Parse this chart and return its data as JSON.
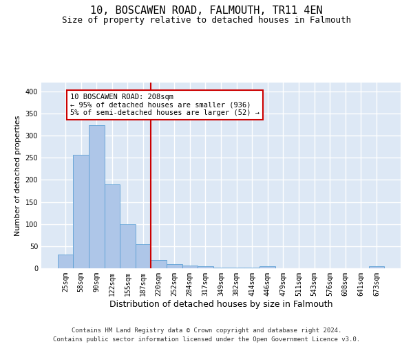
{
  "title": "10, BOSCAWEN ROAD, FALMOUTH, TR11 4EN",
  "subtitle": "Size of property relative to detached houses in Falmouth",
  "xlabel": "Distribution of detached houses by size in Falmouth",
  "ylabel": "Number of detached properties",
  "bar_color": "#aec6e8",
  "bar_edge_color": "#5a9fd4",
  "background_color": "#dde8f5",
  "grid_color": "#ffffff",
  "categories": [
    "25sqm",
    "58sqm",
    "90sqm",
    "122sqm",
    "155sqm",
    "187sqm",
    "220sqm",
    "252sqm",
    "284sqm",
    "317sqm",
    "349sqm",
    "382sqm",
    "414sqm",
    "446sqm",
    "479sqm",
    "511sqm",
    "543sqm",
    "576sqm",
    "608sqm",
    "641sqm",
    "673sqm"
  ],
  "values": [
    31,
    256,
    323,
    190,
    100,
    55,
    18,
    10,
    7,
    4,
    2,
    2,
    2,
    5,
    0,
    0,
    0,
    0,
    0,
    0,
    4
  ],
  "ylim": [
    0,
    420
  ],
  "yticks": [
    0,
    50,
    100,
    150,
    200,
    250,
    300,
    350,
    400
  ],
  "property_line_x": 5.5,
  "annotation_text": "10 BOSCAWEN ROAD: 208sqm\n← 95% of detached houses are smaller (936)\n5% of semi-detached houses are larger (52) →",
  "annotation_box_color": "#ffffff",
  "annotation_box_edge": "#cc0000",
  "line_color": "#cc0000",
  "footer_line1": "Contains HM Land Registry data © Crown copyright and database right 2024.",
  "footer_line2": "Contains public sector information licensed under the Open Government Licence v3.0.",
  "title_fontsize": 11,
  "subtitle_fontsize": 9,
  "xlabel_fontsize": 9,
  "ylabel_fontsize": 8,
  "tick_fontsize": 7,
  "annotation_fontsize": 7.5,
  "footer_fontsize": 6.5
}
